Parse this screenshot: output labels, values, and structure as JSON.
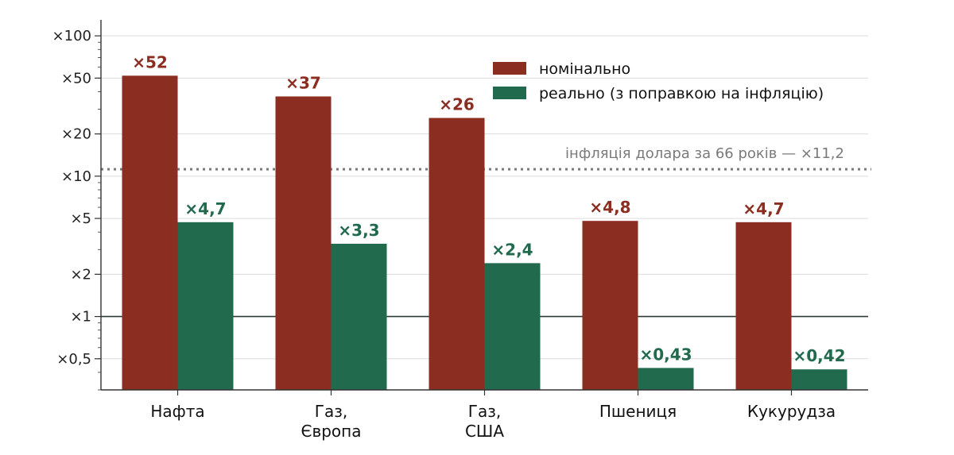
{
  "chart_data": {
    "type": "bar",
    "yscale": "log",
    "ylim": [
      0.3,
      130
    ],
    "grid": true,
    "legend_position": "top-right",
    "categories": [
      "Нафта",
      "Газ,\nЄвропа",
      "Газ,\nСША",
      "Пшениця",
      "Кукурудза"
    ],
    "series": [
      {
        "name": "номінально",
        "color": "#8b2e21",
        "values": [
          52,
          37,
          26,
          4.8,
          4.7
        ],
        "labels": [
          "×52",
          "×37",
          "×26",
          "×4,8",
          "×4,7"
        ]
      },
      {
        "name": "реально (з поправкою на інфляцію)",
        "color": "#216a4e",
        "values": [
          4.7,
          3.3,
          2.4,
          0.43,
          0.42
        ],
        "labels": [
          "×4,7",
          "×3,3",
          "×2,4",
          "×0,43",
          "×0,42"
        ]
      }
    ],
    "y_ticks": [
      {
        "value": 100,
        "label": "×100"
      },
      {
        "value": 50,
        "label": "×50"
      },
      {
        "value": 20,
        "label": "×20"
      },
      {
        "value": 10,
        "label": "×10"
      },
      {
        "value": 5,
        "label": "×5"
      },
      {
        "value": 2,
        "label": "×2"
      },
      {
        "value": 1,
        "label": "×1"
      },
      {
        "value": 0.5,
        "label": "×0,5"
      }
    ],
    "reference_lines": [
      {
        "value": 11.2,
        "style": "dotted",
        "color": "#7a7a7a",
        "label": "інфляція долара за 66 років — ×11,2"
      },
      {
        "value": 1,
        "style": "solid",
        "color": "#2f3b36"
      }
    ]
  }
}
